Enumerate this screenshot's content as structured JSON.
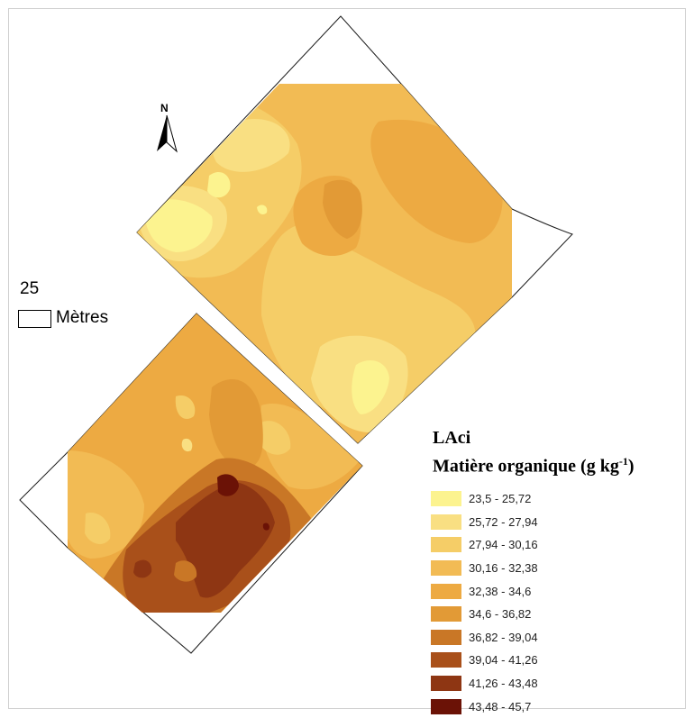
{
  "legend": {
    "title": "LAci",
    "subtitle_prefix": "Matière organique (g kg",
    "subtitle_sup": "-1",
    "subtitle_suffix": ")",
    "classes": [
      {
        "label": "23,5 - 25,72",
        "color": "#fcf38f"
      },
      {
        "label": "25,72 - 27,94",
        "color": "#f9df82"
      },
      {
        "label": "27,94 - 30,16",
        "color": "#f5cd67"
      },
      {
        "label": "30,16 - 32,38",
        "color": "#f2bb54"
      },
      {
        "label": "32,38 - 34,6",
        "color": "#edaa42"
      },
      {
        "label": "34,6 - 36,82",
        "color": "#e29a36"
      },
      {
        "label": "36,82 - 39,04",
        "color": "#c97726"
      },
      {
        "label": "39,04 - 41,26",
        "color": "#a9501a"
      },
      {
        "label": "41,26 - 43,48",
        "color": "#8e3613"
      },
      {
        "label": "43,48 - 45,7",
        "color": "#6b1206"
      }
    ]
  },
  "scale_bar": {
    "value": "25",
    "unit": "Mètres"
  },
  "north_arrow": {
    "letter": "N"
  }
}
